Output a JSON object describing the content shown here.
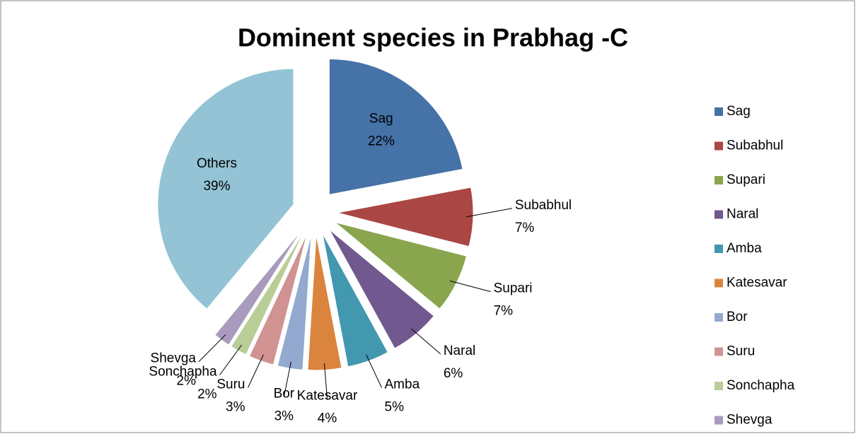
{
  "chart_data": {
    "type": "pie",
    "title": "Dominent species in Prabhag -C",
    "categories": [
      "Sag",
      "Subabhul",
      "Supari",
      "Naral",
      "Amba",
      "Katesavar",
      "Bor",
      "Suru",
      "Sonchapha",
      "Shevga",
      "Others"
    ],
    "values": [
      22,
      7,
      7,
      6,
      5,
      4,
      3,
      3,
      2,
      2,
      39
    ],
    "value_labels": [
      "22%",
      "7%",
      "7%",
      "6%",
      "5%",
      "4%",
      "3%",
      "3%",
      "2%",
      "2%",
      "39%"
    ],
    "colors": [
      "#4572a7",
      "#aa4643",
      "#89a54e",
      "#71588f",
      "#4198af",
      "#db843d",
      "#93a9cf",
      "#d19392",
      "#b9cd96",
      "#a99bbd",
      "#93c3d5"
    ],
    "legend": "right"
  }
}
